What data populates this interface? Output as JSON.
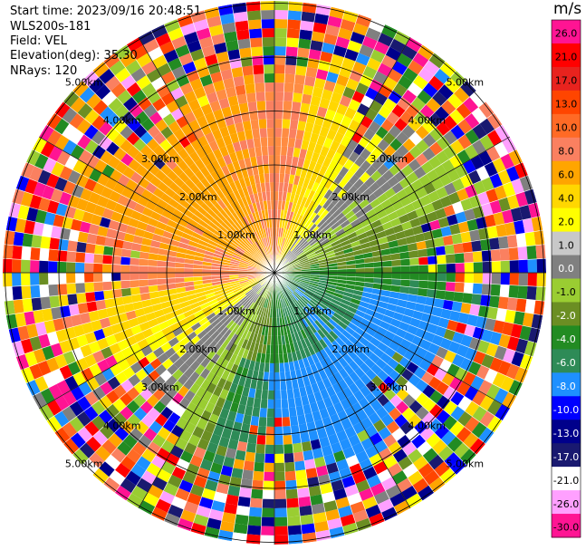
{
  "header": {
    "start_time": "Start time: 2023/09/16 20:48:51",
    "instrument": "WLS200s-181",
    "field": "Field: VEL",
    "elevation": "Elevation(deg): 35.30",
    "nrays": "NRays: 120"
  },
  "chart_data": {
    "type": "heatmap",
    "projection": "polar (PPI)",
    "nrays": 120,
    "range_rings": [
      {
        "label": "1.00km"
      },
      {
        "label": "2.00km"
      },
      {
        "label": "3.00km"
      },
      {
        "label": "4.00km"
      },
      {
        "label": "5.00km"
      }
    ],
    "colorbar": {
      "unit": "m/s",
      "ticks": [
        "26.0",
        "21.0",
        "17.0",
        "13.0",
        "10.0",
        "8.0",
        "6.0",
        "4.0",
        "2.0",
        "1.0",
        "0.0",
        "-1.0",
        "-2.0",
        "-4.0",
        "-6.0",
        "-8.0",
        "-10.0",
        "-13.0",
        "-17.0",
        "-21.0",
        "-26.0",
        "-30.0"
      ],
      "colors": [
        "#ff1493",
        "#ff0000",
        "#e8231e",
        "#ff4500",
        "#ff6a25",
        "#fa8060",
        "#ffa500",
        "#ffd700",
        "#ffff00",
        "#c8c8c8",
        "#808080",
        "#9acd32",
        "#6b8e23",
        "#228b22",
        "#2e8b57",
        "#1e90ff",
        "#0000ff",
        "#00008b",
        "#191970",
        "#ffffff",
        "#ffa0ff",
        "#ff1493"
      ]
    }
  }
}
